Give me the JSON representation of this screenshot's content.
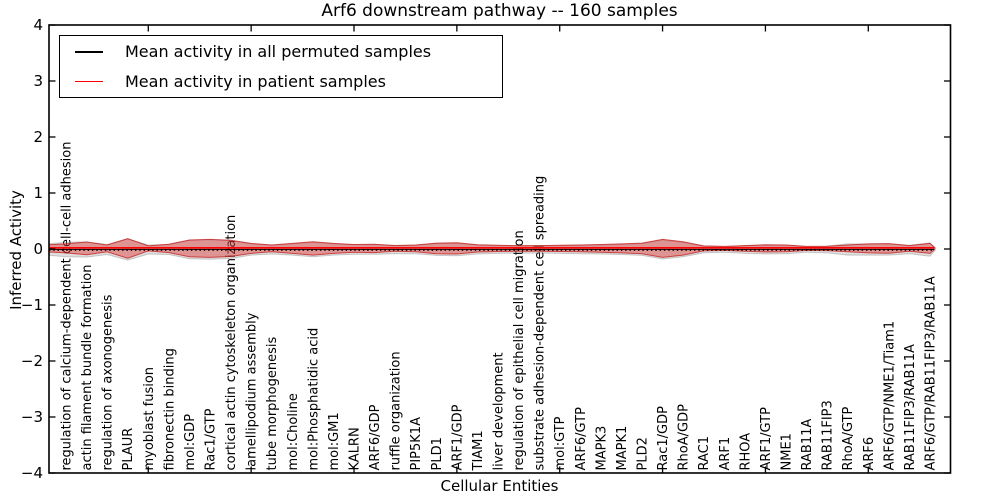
{
  "title": "Arf6 downstream pathway -- 160 samples",
  "axes": {
    "xlabel": "Cellular Entities",
    "ylabel": "Inferred Activity",
    "ylim": [
      -4,
      4
    ],
    "ytick_labels": [
      "−4",
      "−3",
      "−2",
      "−1",
      "0",
      "1",
      "2",
      "3",
      "4"
    ],
    "x_major_tick_indices": [
      4,
      9,
      14,
      19,
      24,
      29,
      34,
      39
    ],
    "grid": false
  },
  "legend": {
    "position": "upper left",
    "items": [
      {
        "label": "Mean activity in all permuted samples",
        "color": "#000000"
      },
      {
        "label": "Mean activity in patient samples",
        "color": "#ff0000"
      }
    ]
  },
  "colors": {
    "patient_line": "#ff0000",
    "permuted_line": "#000000",
    "patient_band_fill": "rgba(225,45,45,0.42)",
    "patient_band_edge": "rgba(195,25,25,0.75)",
    "permuted_band_fill": "rgba(110,110,110,0.22)",
    "permuted_band_edge": "rgba(110,110,110,0.32)",
    "axis": "#000000",
    "background": "#ffffff"
  },
  "chart_data": {
    "type": "violin",
    "title": "Arf6 downstream pathway -- 160 samples",
    "xlabel": "Cellular Entities",
    "ylabel": "Inferred Activity",
    "ylim": [
      -4,
      4
    ],
    "legend_position": "upper left",
    "categories": [
      "regulation of calcium-dependent cell-cell adhesion",
      "actin filament bundle formation",
      "regulation of axonogenesis",
      "PLAUR",
      "myoblast fusion",
      "fibronectin binding",
      "mol:GDP",
      "Rac1/GTP",
      "cortical actin cytoskeleton organization",
      "lamellipodium assembly",
      "tube morphogenesis",
      "mol:Choline",
      "mol:Phosphatidic acid",
      "mol:GM1",
      "KALRN",
      "ARF6/GDP",
      "ruffle organization",
      "PIP5K1A",
      "PLD1",
      "ARF1/GDP",
      "TIAM1",
      "liver development",
      "regulation of epithelial cell migration",
      "substrate adhesion-dependent cell spreading",
      "mol:GTP",
      "ARF6/GTP",
      "MAPK3",
      "MAPK1",
      "PLD2",
      "Rac1/GDP",
      "RhoA/GDP",
      "RAC1",
      "ARF1",
      "RHOA",
      "ARF1/GTP",
      "NME1",
      "RAB11A",
      "RAB11FIP3",
      "RhoA/GTP",
      "ARF6",
      "ARF6/GTP/NME1/Tiam1",
      "RAB11FIP3/RAB11A",
      "ARF6/GTP/RAB11FIP3/RAB11A"
    ],
    "series": [
      {
        "name": "Mean activity in all permuted samples",
        "style": "black solid/dotted line with gray spread band",
        "mean": 0.0,
        "band_halfwidth": [
          0.13,
          0.135,
          0.09,
          0.19,
          0.08,
          0.09,
          0.165,
          0.175,
          0.16,
          0.1,
          0.08,
          0.1,
          0.13,
          0.1,
          0.085,
          0.085,
          0.075,
          0.075,
          0.105,
          0.11,
          0.08,
          0.07,
          0.065,
          0.065,
          0.07,
          0.075,
          0.08,
          0.09,
          0.105,
          0.17,
          0.13,
          0.06,
          0.05,
          0.07,
          0.08,
          0.075,
          0.05,
          0.06,
          0.1,
          0.1,
          0.1,
          0.075,
          0.12
        ]
      },
      {
        "name": "Mean activity in patient samples",
        "style": "red solid line with translucent red violin band",
        "mean": 0.02,
        "band_halfwidth": [
          0.08,
          0.115,
          0.06,
          0.175,
          0.045,
          0.075,
          0.15,
          0.16,
          0.145,
          0.09,
          0.06,
          0.09,
          0.12,
          0.09,
          0.07,
          0.075,
          0.05,
          0.06,
          0.095,
          0.1,
          0.065,
          0.055,
          0.05,
          0.05,
          0.055,
          0.06,
          0.07,
          0.08,
          0.095,
          0.16,
          0.12,
          0.045,
          0.035,
          0.05,
          0.065,
          0.06,
          0.035,
          0.04,
          0.06,
          0.08,
          0.085,
          0.05,
          0.09
        ]
      }
    ]
  }
}
